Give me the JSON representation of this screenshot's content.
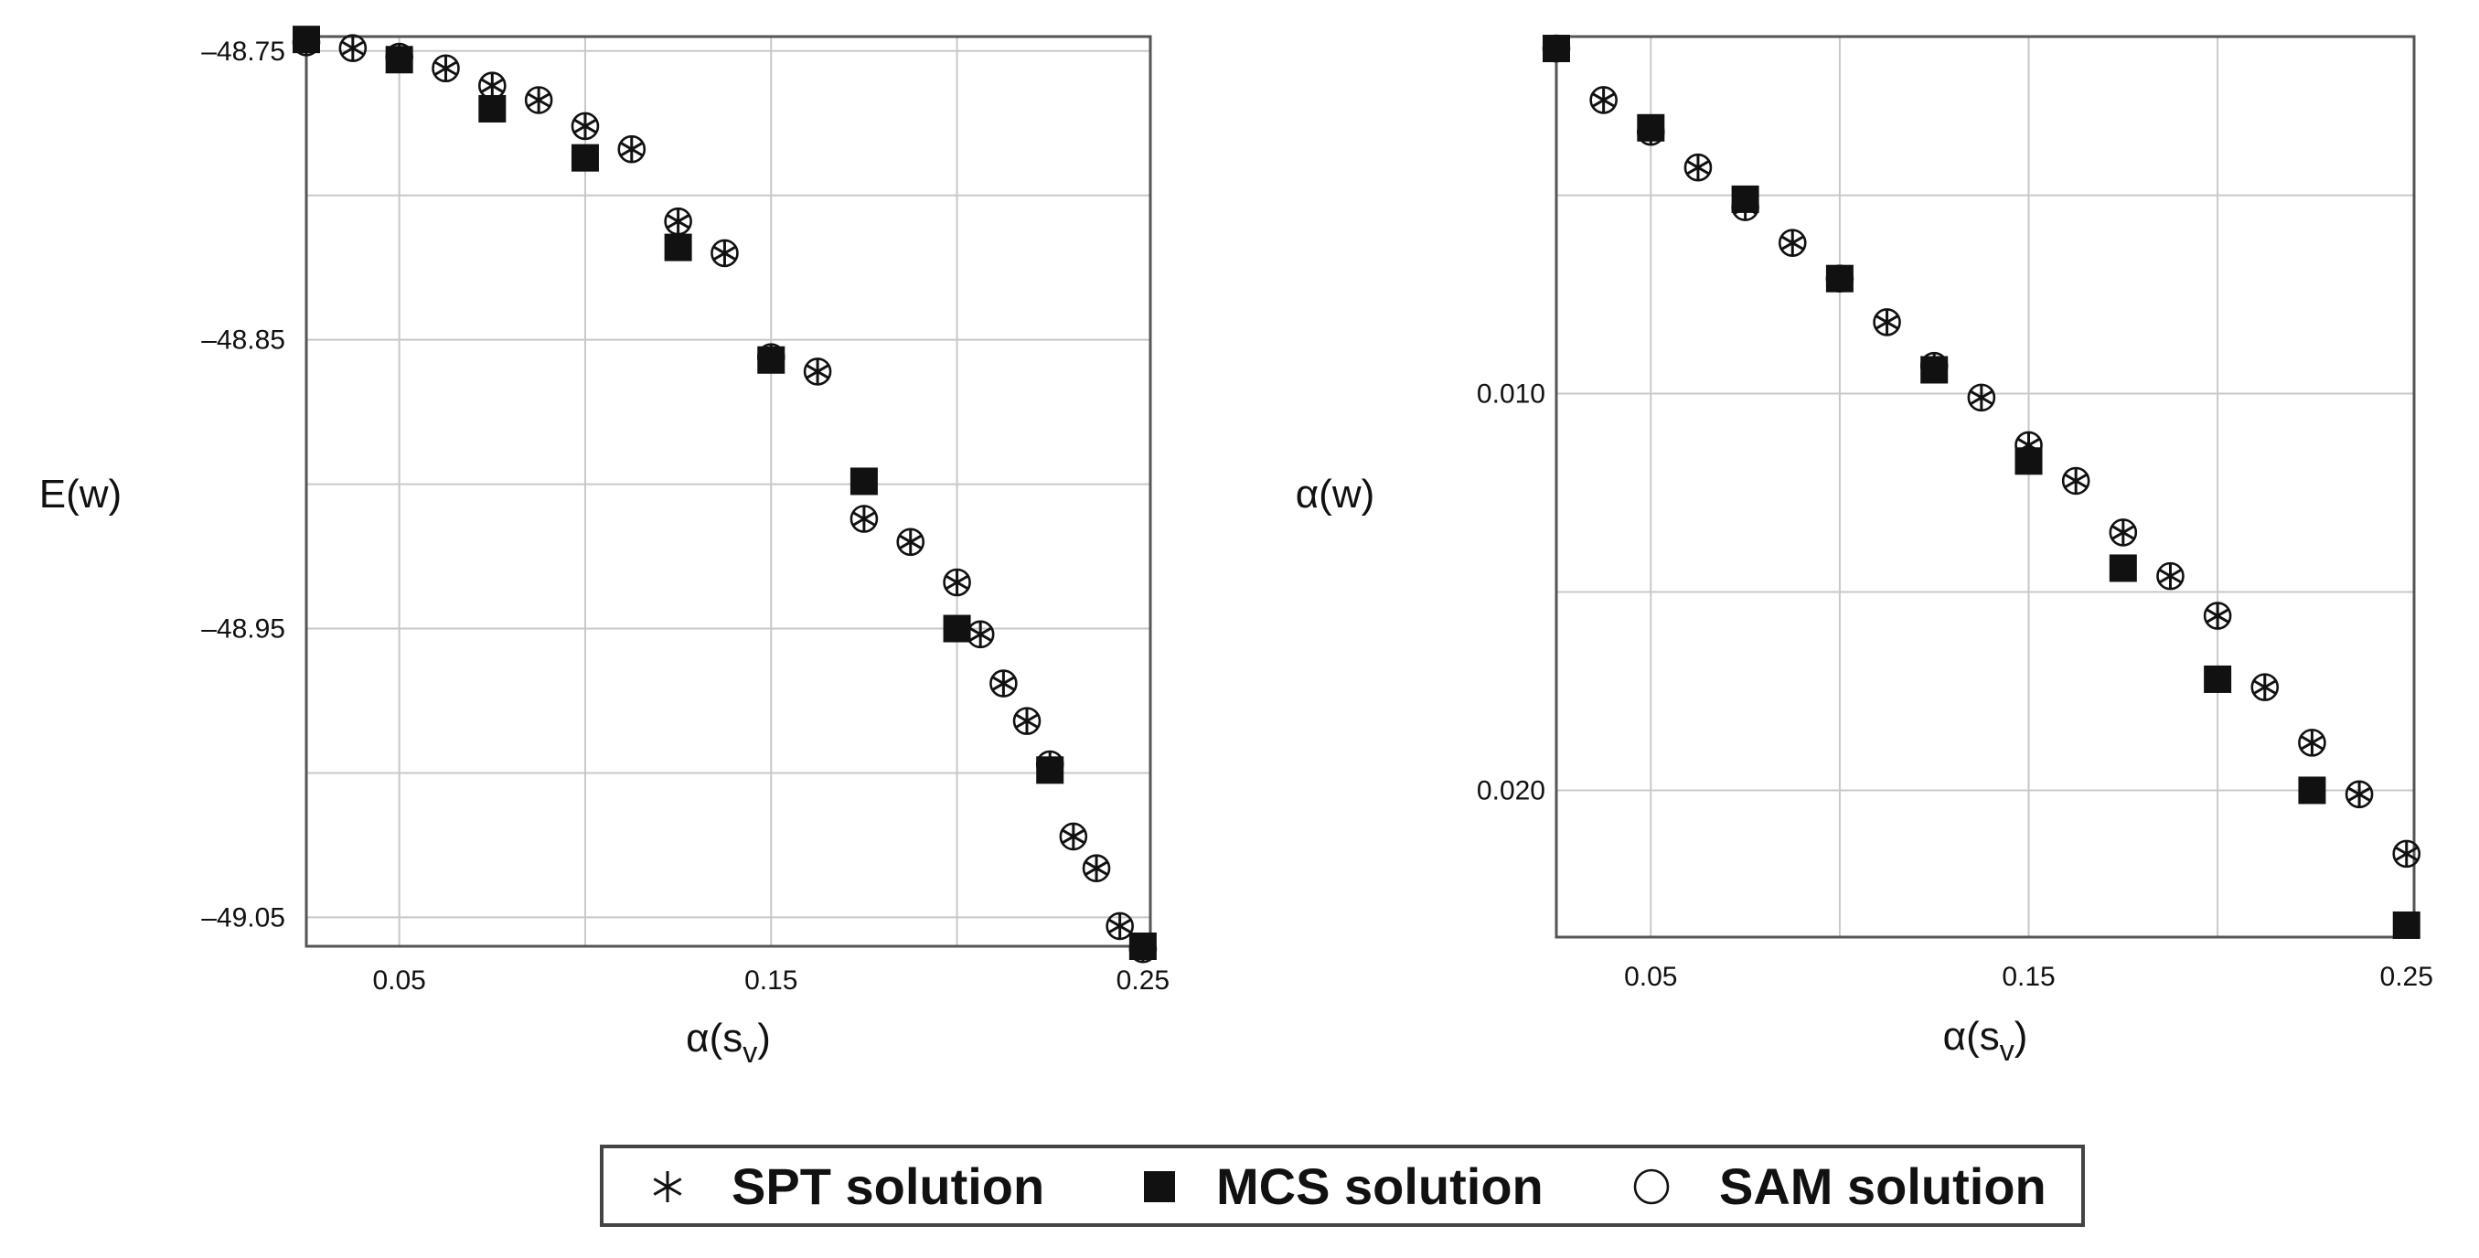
{
  "chart_data": [
    {
      "type": "scatter",
      "xlabel": "α(s_v)",
      "ylabel": "E(w)",
      "x_ticks": [
        "0.05",
        "0.15",
        "0.25"
      ],
      "y_ticks": [
        "–48.75",
        "–48.85",
        "–48.95",
        "–49.05"
      ],
      "xlim": [
        0.025,
        0.252
      ],
      "ylim": [
        -48.745,
        -49.06
      ],
      "grid": true,
      "series": [
        {
          "name": "SPT solution",
          "marker": "star",
          "x": [
            0.025,
            0.0375,
            0.05,
            0.0625,
            0.075,
            0.0875,
            0.1,
            0.1125,
            0.125,
            0.1375,
            0.15,
            0.1625,
            0.175,
            0.1875,
            0.2,
            0.2063,
            0.2125,
            0.2188,
            0.225,
            0.2313,
            0.2375,
            0.2438,
            0.25
          ],
          "y": [
            -48.747,
            -48.749,
            -48.752,
            -48.756,
            -48.762,
            -48.767,
            -48.776,
            -48.784,
            -48.809,
            -48.82,
            -48.856,
            -48.861,
            -48.912,
            -48.92,
            -48.934,
            -48.952,
            -48.969,
            -48.982,
            -48.997,
            -49.022,
            -49.033,
            -49.053,
            -49.061
          ]
        },
        {
          "name": "MCS solution",
          "marker": "square",
          "x": [
            0.025,
            0.05,
            0.075,
            0.1,
            0.125,
            0.15,
            0.175,
            0.2,
            0.225,
            0.25
          ],
          "y": [
            -48.746,
            -48.753,
            -48.77,
            -48.787,
            -48.818,
            -48.857,
            -48.899,
            -48.95,
            -48.999,
            -49.06
          ]
        },
        {
          "name": "SAM solution",
          "marker": "circle",
          "x": [
            0.025,
            0.0375,
            0.05,
            0.0625,
            0.075,
            0.0875,
            0.1,
            0.1125,
            0.125,
            0.1375,
            0.15,
            0.1625,
            0.175,
            0.1875,
            0.2,
            0.2063,
            0.2125,
            0.2188,
            0.225,
            0.2313,
            0.2375,
            0.2438,
            0.25
          ],
          "y": [
            -48.747,
            -48.749,
            -48.752,
            -48.756,
            -48.762,
            -48.767,
            -48.776,
            -48.784,
            -48.809,
            -48.82,
            -48.856,
            -48.861,
            -48.912,
            -48.92,
            -48.934,
            -48.952,
            -48.969,
            -48.982,
            -48.997,
            -49.022,
            -49.033,
            -49.053,
            -49.061
          ]
        }
      ]
    },
    {
      "type": "scatter",
      "xlabel": "α(s_v)",
      "ylabel": "α(w)",
      "x_ticks": [
        "0.05",
        "0.15",
        "0.25"
      ],
      "y_ticks": [
        "0.010",
        "0.020"
      ],
      "xlim": [
        0.025,
        0.252
      ],
      "ylim": [
        0.001,
        0.0237
      ],
      "grid": true,
      "series": [
        {
          "name": "SPT solution",
          "marker": "star",
          "x": [
            0.025,
            0.0375,
            0.05,
            0.0625,
            0.075,
            0.0875,
            0.1,
            0.1125,
            0.125,
            0.1375,
            0.15,
            0.1625,
            0.175,
            0.1875,
            0.2,
            0.2125,
            0.225,
            0.2375,
            0.25
          ],
          "y": [
            0.0013,
            0.0026,
            0.0034,
            0.0043,
            0.0053,
            0.0062,
            0.0071,
            0.0082,
            0.0093,
            0.0101,
            0.0113,
            0.0122,
            0.0135,
            0.0146,
            0.0156,
            0.0174,
            0.0188,
            0.0201,
            0.0216
          ]
        },
        {
          "name": "MCS solution",
          "marker": "square",
          "x": [
            0.025,
            0.05,
            0.075,
            0.1,
            0.125,
            0.15,
            0.175,
            0.2,
            0.225,
            0.25
          ],
          "y": [
            0.0013,
            0.0033,
            0.0051,
            0.0071,
            0.0094,
            0.0117,
            0.0144,
            0.0172,
            0.02,
            0.0234
          ]
        },
        {
          "name": "SAM solution",
          "marker": "circle",
          "x": [
            0.025,
            0.0375,
            0.05,
            0.0625,
            0.075,
            0.0875,
            0.1,
            0.1125,
            0.125,
            0.1375,
            0.15,
            0.1625,
            0.175,
            0.1875,
            0.2,
            0.2125,
            0.225,
            0.2375,
            0.25
          ],
          "y": [
            0.0013,
            0.0026,
            0.0034,
            0.0043,
            0.0053,
            0.0062,
            0.0071,
            0.0082,
            0.0093,
            0.0101,
            0.0113,
            0.0122,
            0.0135,
            0.0146,
            0.0156,
            0.0174,
            0.0188,
            0.0201,
            0.0216
          ]
        }
      ]
    }
  ],
  "legend": {
    "items": [
      {
        "marker": "star",
        "label": "SPT solution"
      },
      {
        "marker": "square",
        "label": "MCS solution"
      },
      {
        "marker": "circle",
        "label": "SAM solution"
      }
    ]
  },
  "colors": {
    "frame": "#555555",
    "grid": "#c8c8c8",
    "marker": "#111111",
    "background": "#ffffff"
  }
}
